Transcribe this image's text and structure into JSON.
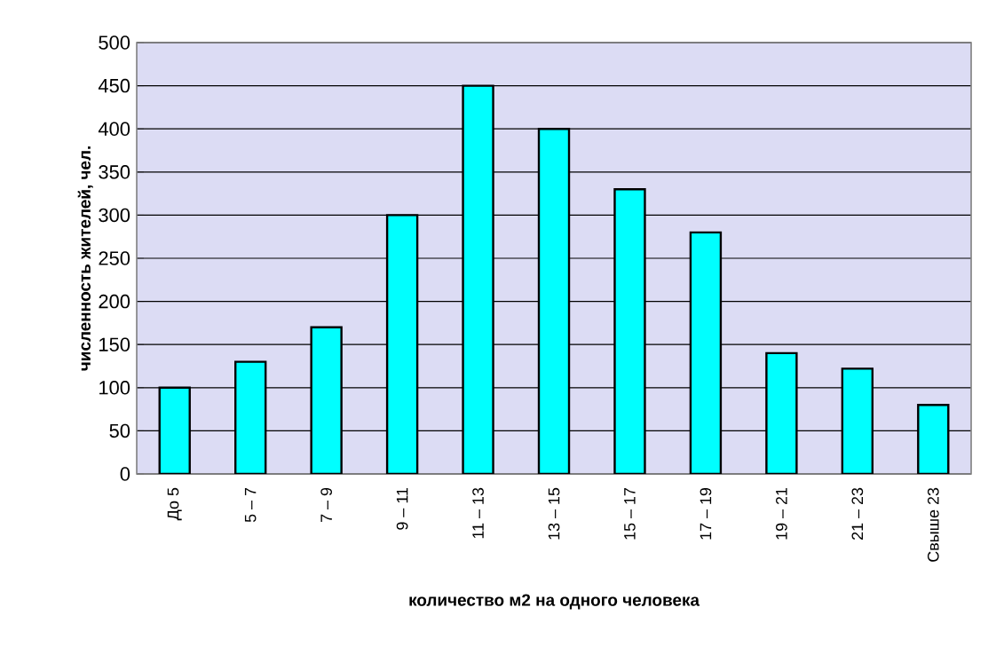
{
  "chart_data": {
    "type": "bar",
    "xlabel": "количество м2 на одного человека",
    "ylabel": "численность жителей, чел.",
    "categories": [
      "До 5",
      "5 – 7",
      "7 – 9",
      "9 – 11",
      "11 – 13",
      "13 – 15",
      "15 – 17",
      "17 – 19",
      "19 – 21",
      "21 – 23",
      "Свыше 23"
    ],
    "values": [
      100,
      130,
      170,
      300,
      450,
      400,
      330,
      280,
      140,
      122,
      80
    ],
    "color": "#00ffff",
    "ylim": [
      0,
      500
    ],
    "yticks": [
      0,
      50,
      100,
      150,
      200,
      250,
      300,
      350,
      400,
      450,
      500
    ],
    "grid": "y"
  }
}
